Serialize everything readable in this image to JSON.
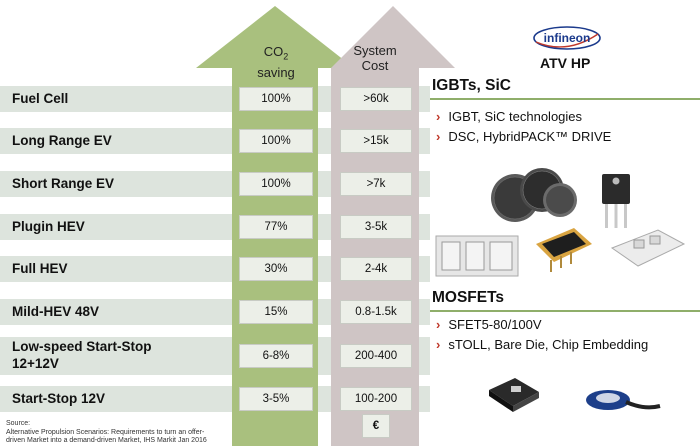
{
  "header": {
    "co2_label": "CO",
    "co2_sub": "2",
    "co2_label2": "saving",
    "cost_label": "System",
    "cost_label2": "Cost",
    "logo_text": "infineon",
    "brand_title": "ATV HP"
  },
  "rows": [
    {
      "label": "Fuel Cell",
      "co2": "100%",
      "cost": ">60k"
    },
    {
      "label": "Long Range EV",
      "co2": "100%",
      "cost": ">15k"
    },
    {
      "label": "Short Range EV",
      "co2": "100%",
      "cost": ">7k"
    },
    {
      "label": "Plugin HEV",
      "co2": "77%",
      "cost": "3-5k"
    },
    {
      "label": "Full HEV",
      "co2": "30%",
      "cost": "2-4k"
    },
    {
      "label": "Mild-HEV 48V",
      "co2": "15%",
      "cost": "0.8-1.5k"
    },
    {
      "label": "Low-speed Start-Stop",
      "label2": "12+12V",
      "co2": "6-8%",
      "cost": "200-400"
    },
    {
      "label": "Start-Stop 12V",
      "co2": "3-5%",
      "cost": "100-200"
    }
  ],
  "currency": "€",
  "sections": {
    "igbt": {
      "title": "IGBTs, SiC",
      "bullets": [
        "IGBT, SiC technologies",
        "DSC, HybridPACK™ DRIVE"
      ]
    },
    "mosfet": {
      "title": "MOSFETs",
      "bullets": [
        "SFET5-80/100V",
        "sTOLL, Bare Die, Chip Embedding"
      ]
    }
  },
  "source": {
    "line1": "Source:",
    "line2": "Alternative Propulsion Scenarios: Requirements to turn an offer-",
    "line3": "driven Market into a demand-driven Market, IHS Markit Jan 2016"
  },
  "colors": {
    "green_arrow": "#a9c07e",
    "gray_arrow": "#cfc5c5",
    "row_band": "#dde4dd",
    "accent_line": "#8fae6a",
    "bullet_marker": "#c0392b",
    "infineon_blue": "#1b3a8c"
  }
}
